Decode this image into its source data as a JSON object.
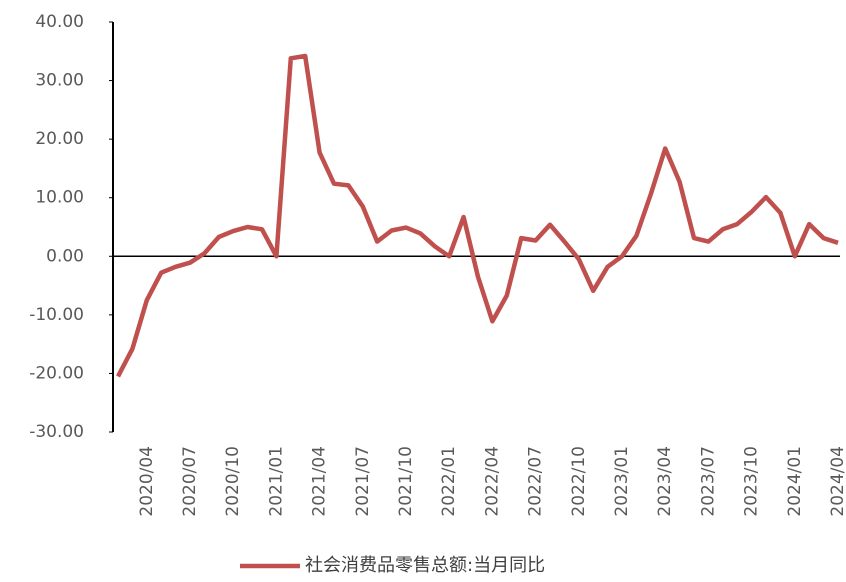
{
  "chart_data": {
    "type": "line",
    "categories": [
      null,
      null,
      "2020/04",
      null,
      null,
      "2020/07",
      null,
      null,
      "2020/10",
      null,
      null,
      "2021/01",
      null,
      null,
      "2021/04",
      null,
      null,
      "2021/07",
      null,
      null,
      "2021/10",
      null,
      null,
      "2022/01",
      null,
      null,
      "2022/04",
      null,
      null,
      "2022/07",
      null,
      null,
      "2022/10",
      null,
      null,
      "2023/01",
      null,
      null,
      "2023/04",
      null,
      null,
      "2023/07",
      null,
      null,
      "2023/10",
      null,
      null,
      "2024/01",
      null,
      null,
      "2024/04"
    ],
    "series": [
      {
        "name": "社会消费品零售总额:当月同比",
        "color": "#c0504d",
        "values": [
          -20.5,
          -15.8,
          -7.5,
          -2.8,
          -1.8,
          -1.1,
          0.5,
          3.3,
          4.3,
          5.0,
          4.6,
          0,
          33.8,
          34.2,
          17.7,
          12.4,
          12.1,
          8.5,
          2.5,
          4.4,
          4.9,
          3.9,
          1.7,
          0,
          6.7,
          -3.5,
          -11.1,
          -6.7,
          3.1,
          2.7,
          5.4,
          2.5,
          -0.5,
          -5.9,
          -1.8,
          0,
          3.5,
          10.6,
          18.4,
          12.7,
          3.1,
          2.5,
          4.6,
          5.5,
          7.6,
          10.1,
          7.4,
          0,
          5.5,
          3.1,
          2.3
        ]
      }
    ],
    "ylim": [
      -30,
      40
    ],
    "yticks": [
      {
        "value": -30,
        "label": "-30.00"
      },
      {
        "value": -20,
        "label": "-20.00"
      },
      {
        "value": -10,
        "label": "-10.00"
      },
      {
        "value": 0,
        "label": "0.00"
      },
      {
        "value": 10,
        "label": "10.00"
      },
      {
        "value": 20,
        "label": "20.00"
      },
      {
        "value": 30,
        "label": "30.00"
      },
      {
        "value": 40,
        "label": "40.00"
      }
    ],
    "legend": "bottom"
  }
}
